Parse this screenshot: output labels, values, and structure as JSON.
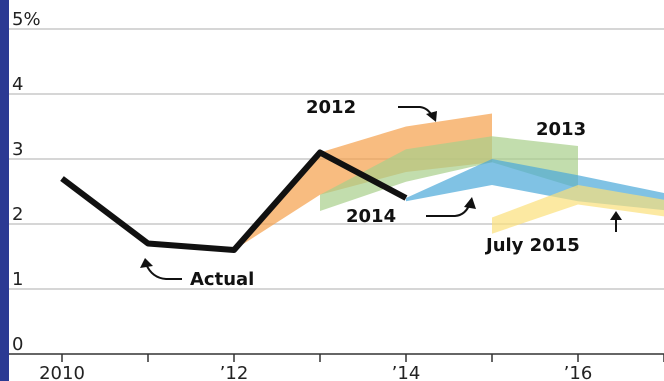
{
  "chart_data": {
    "type": "area",
    "title": "",
    "xlabel": "",
    "ylabel": "",
    "ylim": [
      0,
      5
    ],
    "xlim": [
      2010,
      2017.1
    ],
    "y_ticks": [
      0,
      1,
      2,
      3,
      4,
      5
    ],
    "y_tick_labels": [
      "0",
      "1",
      "2",
      "3",
      "4",
      "5%"
    ],
    "x_ticks": [
      2010,
      2011,
      2012,
      2013,
      2014,
      2015,
      2016,
      2017
    ],
    "x_tick_labels": [
      {
        "x": 2010,
        "label": "2010"
      },
      {
        "x": 2012,
        "label": "’12"
      },
      {
        "x": 2014,
        "label": "’14"
      },
      {
        "x": 2016,
        "label": "’16"
      }
    ],
    "grid": "horizontal",
    "series": [
      {
        "name": "Actual",
        "kind": "line",
        "color": "#111111",
        "points": [
          [
            2010,
            2.7
          ],
          [
            2011,
            1.7
          ],
          [
            2012,
            1.6
          ],
          [
            2013,
            3.1
          ],
          [
            2014,
            2.4
          ]
        ]
      },
      {
        "name": "2012",
        "kind": "band",
        "color": "#f5a04a",
        "upper": [
          [
            2012,
            1.65
          ],
          [
            2013,
            3.1
          ],
          [
            2014,
            3.5
          ],
          [
            2015,
            3.7
          ]
        ],
        "lower": [
          [
            2012,
            1.6
          ],
          [
            2013,
            2.45
          ],
          [
            2014,
            2.8
          ],
          [
            2015,
            2.95
          ]
        ]
      },
      {
        "name": "2013",
        "kind": "band",
        "color": "#a8cf8a",
        "upper": [
          [
            2013,
            2.45
          ],
          [
            2014,
            3.15
          ],
          [
            2015,
            3.35
          ],
          [
            2016,
            3.2
          ]
        ],
        "lower": [
          [
            2013,
            2.2
          ],
          [
            2014,
            2.65
          ],
          [
            2015,
            2.95
          ],
          [
            2016,
            2.55
          ]
        ]
      },
      {
        "name": "2014",
        "kind": "band",
        "color": "#4aa8d8",
        "upper": [
          [
            2014,
            2.4
          ],
          [
            2015,
            3.0
          ],
          [
            2016,
            2.75
          ],
          [
            2017.1,
            2.45
          ]
        ],
        "lower": [
          [
            2014,
            2.35
          ],
          [
            2015,
            2.6
          ],
          [
            2016,
            2.35
          ],
          [
            2017.1,
            2.2
          ]
        ]
      },
      {
        "name": "July 2015",
        "kind": "band",
        "color": "#fbe07a",
        "upper": [
          [
            2015,
            2.1
          ],
          [
            2016,
            2.6
          ],
          [
            2017.1,
            2.35
          ]
        ],
        "lower": [
          [
            2015,
            1.85
          ],
          [
            2016,
            2.3
          ],
          [
            2017.1,
            2.1
          ]
        ]
      }
    ],
    "annotations": [
      {
        "text": "2012"
      },
      {
        "text": "2013"
      },
      {
        "text": "2014"
      },
      {
        "text": "July 2015"
      },
      {
        "text": "Actual"
      }
    ]
  }
}
